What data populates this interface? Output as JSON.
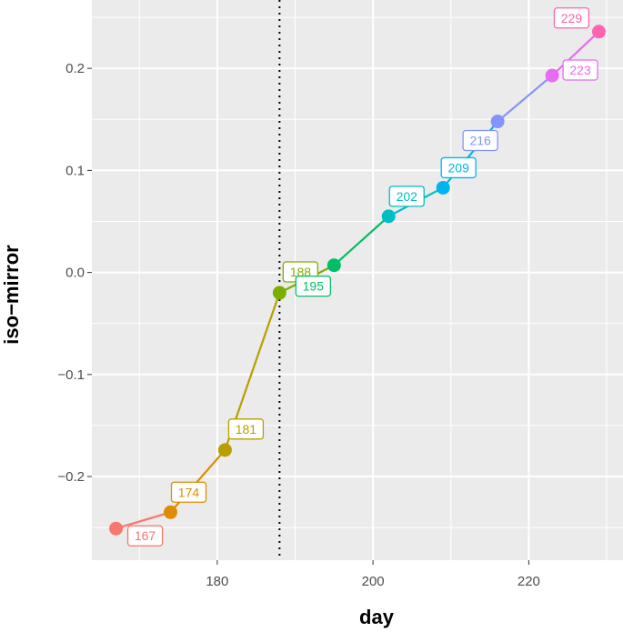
{
  "chart_data": {
    "type": "line",
    "xlabel": "day",
    "ylabel": "iso−mirror",
    "xlim": [
      163.9,
      232.1
    ],
    "ylim": [
      -0.282,
      0.267
    ],
    "x_ticks": [
      180,
      200,
      220
    ],
    "x_tick_labels": [
      "180",
      "200",
      "220"
    ],
    "y_ticks": [
      -0.2,
      -0.1,
      0.0,
      0.1,
      0.2
    ],
    "y_tick_labels": [
      "−0.2",
      "−0.1",
      "0.0",
      "0.1",
      "0.2"
    ],
    "grid": true,
    "vline_x": 188,
    "points": [
      {
        "x": 167,
        "y": -0.251,
        "label": "167",
        "color": "#F8766D"
      },
      {
        "x": 174,
        "y": -0.235,
        "label": "174",
        "color": "#DE8C00"
      },
      {
        "x": 181,
        "y": -0.174,
        "label": "181",
        "color": "#B79F00"
      },
      {
        "x": 188,
        "y": -0.02,
        "label": "188",
        "color": "#7CAE00"
      },
      {
        "x": 195,
        "y": 0.007,
        "label": "195",
        "color": "#00BE67"
      },
      {
        "x": 202,
        "y": 0.055,
        "label": "202",
        "color": "#00BFC4"
      },
      {
        "x": 209,
        "y": 0.083,
        "label": "209",
        "color": "#00B4F0"
      },
      {
        "x": 216,
        "y": 0.148,
        "label": "216",
        "color": "#8494FF"
      },
      {
        "x": 223,
        "y": 0.193,
        "label": "223",
        "color": "#E76BF3"
      },
      {
        "x": 229,
        "y": 0.236,
        "label": "229",
        "color": "#FF64B0"
      }
    ]
  }
}
